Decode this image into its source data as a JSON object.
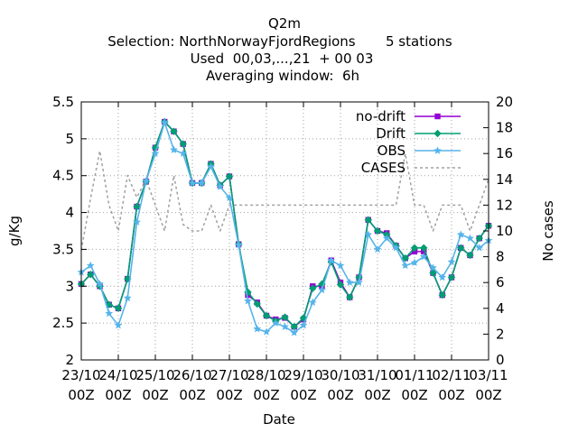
{
  "chart_data": {
    "type": "line",
    "title_lines": [
      "Q2m",
      "Selection: NorthNorwayFjordRegions       5 stations",
      "Used  00,03,...,21  + 00 03",
      "Averaging window:  6h"
    ],
    "xlabel": "Date",
    "ylabel": "g/Kg",
    "y2label": "No cases",
    "ylim": [
      2,
      5.5
    ],
    "y2lim": [
      0,
      20
    ],
    "yticks": [
      "2",
      "2.5",
      "3",
      "3.5",
      "4",
      "4.5",
      "5",
      "5.5"
    ],
    "y2ticks": [
      "0",
      "2",
      "4",
      "6",
      "8",
      "10",
      "12",
      "14",
      "16",
      "18",
      "20"
    ],
    "xticks": [
      {
        "day": "23/10",
        "hour": "00Z"
      },
      {
        "day": "24/10",
        "hour": "00Z"
      },
      {
        "day": "25/10",
        "hour": "00Z"
      },
      {
        "day": "26/10",
        "hour": "00Z"
      },
      {
        "day": "27/10",
        "hour": "00Z"
      },
      {
        "day": "28/10",
        "hour": "00Z"
      },
      {
        "day": "29/10",
        "hour": "00Z"
      },
      {
        "day": "30/10",
        "hour": "00Z"
      },
      {
        "day": "31/10",
        "hour": "00Z"
      },
      {
        "day": "01/11",
        "hour": "00Z"
      },
      {
        "day": "02/11",
        "hour": "00Z"
      },
      {
        "day": "03/11",
        "hour": "00Z"
      }
    ],
    "x_start": "23/10 00Z",
    "x_step_hours": 6,
    "legend_position": "top-right",
    "grid": true,
    "series": [
      {
        "name": "no-drift",
        "color": "#9400d3",
        "marker": "square",
        "axis": "y",
        "values": [
          3.03,
          3.16,
          3.0,
          2.75,
          2.7,
          3.1,
          4.08,
          4.42,
          4.88,
          5.23,
          5.1,
          4.93,
          4.4,
          4.4,
          4.66,
          4.37,
          4.49,
          3.57,
          2.88,
          2.78,
          2.6,
          2.55,
          2.57,
          2.45,
          2.55,
          3.0,
          3.0,
          3.35,
          3.05,
          2.85,
          3.12,
          3.9,
          3.75,
          3.72,
          3.55,
          3.38,
          3.47,
          3.47,
          3.18,
          2.88,
          3.12,
          3.52,
          3.42,
          3.65,
          3.82
        ]
      },
      {
        "name": "Drift",
        "color": "#009e73",
        "marker": "diamond",
        "axis": "y",
        "values": [
          3.03,
          3.16,
          3.0,
          2.75,
          2.7,
          3.1,
          4.08,
          4.42,
          4.88,
          5.23,
          5.1,
          4.93,
          4.4,
          4.4,
          4.66,
          4.37,
          4.49,
          3.57,
          2.92,
          2.76,
          2.6,
          2.53,
          2.58,
          2.45,
          2.57,
          2.97,
          3.03,
          3.33,
          3.02,
          2.85,
          3.12,
          3.9,
          3.75,
          3.7,
          3.55,
          3.38,
          3.52,
          3.52,
          3.18,
          2.88,
          3.12,
          3.52,
          3.42,
          3.65,
          3.82
        ]
      },
      {
        "name": "OBS",
        "color": "#56b4e9",
        "marker": "star",
        "axis": "y",
        "values": [
          3.19,
          3.28,
          3.03,
          2.63,
          2.47,
          2.84,
          3.87,
          4.43,
          4.8,
          5.22,
          4.85,
          4.8,
          4.4,
          4.4,
          4.62,
          4.35,
          4.2,
          3.56,
          2.8,
          2.42,
          2.38,
          2.5,
          2.45,
          2.37,
          2.47,
          2.78,
          2.95,
          3.35,
          3.28,
          3.05,
          3.05,
          3.7,
          3.5,
          3.65,
          3.52,
          3.28,
          3.32,
          3.4,
          3.25,
          3.12,
          3.33,
          3.7,
          3.65,
          3.52,
          3.62
        ]
      },
      {
        "name": "CASES",
        "color": "#a0a0a0",
        "marker": "none",
        "dashed": true,
        "axis": "y2",
        "values": [
          8.5,
          12.5,
          16.2,
          12.0,
          10.0,
          14.3,
          12.6,
          14.0,
          12.0,
          10.0,
          14.3,
          10.5,
          10.0,
          10.0,
          12.0,
          10.0,
          12.0,
          12.0,
          12.0,
          12.0,
          12.0,
          12.0,
          12.0,
          12.0,
          12.0,
          12.0,
          12.0,
          12.0,
          12.0,
          12.0,
          12.0,
          12.0,
          12.0,
          12.0,
          12.0,
          16.0,
          12.0,
          12.0,
          10.0,
          12.0,
          12.0,
          12.0,
          10.0,
          12.0,
          14.0
        ]
      }
    ]
  }
}
